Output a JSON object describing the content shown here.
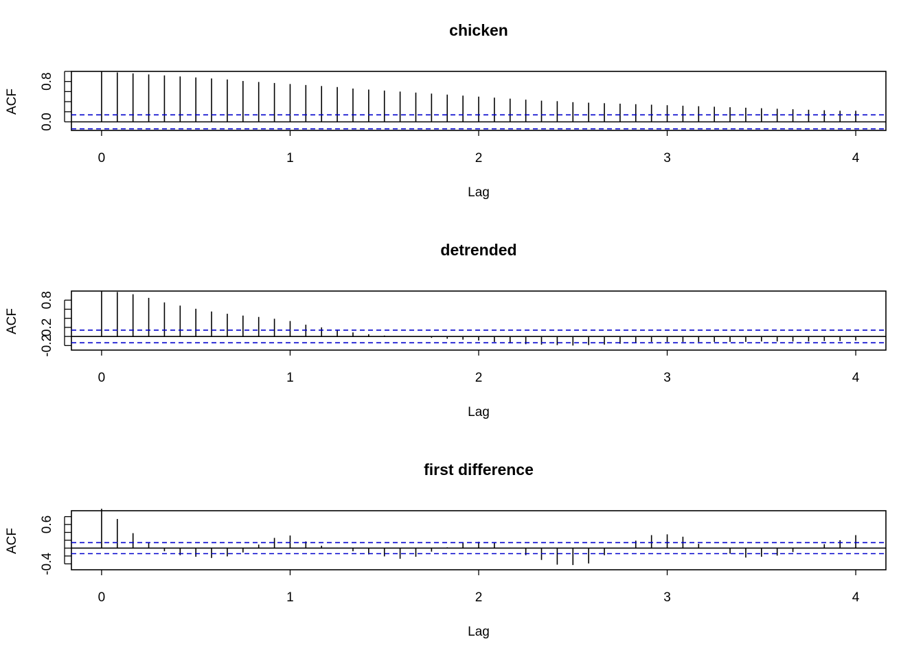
{
  "chart_data": [
    {
      "type": "bar",
      "title": "chicken",
      "xlabel": "Lag",
      "ylabel": "ACF",
      "xlim": [
        -0.16,
        4.16
      ],
      "ylim": [
        -0.17,
        1.0
      ],
      "x_ticks": [
        "0",
        "1",
        "2",
        "3",
        "4"
      ],
      "y_ticks": [
        "0.0",
        "0.8"
      ],
      "y_tick_values": [
        0.0,
        0.8
      ],
      "y_minor_ticks": [
        0.0,
        0.2,
        0.4,
        0.6,
        0.8,
        1.0
      ],
      "ci": 0.139,
      "lags": [
        0,
        0.0833,
        0.1667,
        0.25,
        0.3333,
        0.4167,
        0.5,
        0.5833,
        0.6667,
        0.75,
        0.8333,
        0.9167,
        1,
        1.0833,
        1.1667,
        1.25,
        1.3333,
        1.4167,
        1.5,
        1.5833,
        1.6667,
        1.75,
        1.8333,
        1.9167,
        2,
        2.0833,
        2.1667,
        2.25,
        2.3333,
        2.4167,
        2.5,
        2.5833,
        2.6667,
        2.75,
        2.8333,
        2.9167,
        3,
        3.0833,
        3.1667,
        3.25,
        3.3333,
        3.4167,
        3.5,
        3.5833,
        3.6667,
        3.75,
        3.8333,
        3.9167,
        4
      ],
      "values": [
        1.0,
        0.98,
        0.96,
        0.94,
        0.92,
        0.9,
        0.88,
        0.86,
        0.84,
        0.81,
        0.79,
        0.77,
        0.75,
        0.73,
        0.71,
        0.69,
        0.66,
        0.64,
        0.62,
        0.6,
        0.58,
        0.56,
        0.54,
        0.52,
        0.5,
        0.48,
        0.46,
        0.44,
        0.42,
        0.41,
        0.39,
        0.38,
        0.37,
        0.36,
        0.35,
        0.34,
        0.33,
        0.32,
        0.31,
        0.3,
        0.29,
        0.28,
        0.27,
        0.26,
        0.25,
        0.24,
        0.23,
        0.22,
        0.22
      ]
    },
    {
      "type": "bar",
      "title": "detrended",
      "xlabel": "Lag",
      "ylabel": "ACF",
      "xlim": [
        -0.16,
        4.16
      ],
      "ylim": [
        -0.3,
        1.0
      ],
      "x_ticks": [
        "0",
        "1",
        "2",
        "3",
        "4"
      ],
      "y_ticks": [
        "-0.2",
        "0.2",
        "0.8"
      ],
      "y_tick_values": [
        -0.2,
        0.2,
        0.8
      ],
      "y_minor_ticks": [
        -0.2,
        0.0,
        0.2,
        0.4,
        0.6,
        0.8
      ],
      "ci": 0.139,
      "lags": [
        0,
        0.0833,
        0.1667,
        0.25,
        0.3333,
        0.4167,
        0.5,
        0.5833,
        0.6667,
        0.75,
        0.8333,
        0.9167,
        1,
        1.0833,
        1.1667,
        1.25,
        1.3333,
        1.4167,
        1.5,
        1.5833,
        1.6667,
        1.75,
        1.8333,
        1.9167,
        2,
        2.0833,
        2.1667,
        2.25,
        2.3333,
        2.4167,
        2.5,
        2.5833,
        2.6667,
        2.75,
        2.8333,
        2.9167,
        3,
        3.0833,
        3.1667,
        3.25,
        3.3333,
        3.4167,
        3.5,
        3.5833,
        3.6667,
        3.75,
        3.8333,
        3.9167,
        4
      ],
      "values": [
        1.0,
        0.98,
        0.93,
        0.85,
        0.75,
        0.68,
        0.61,
        0.55,
        0.5,
        0.46,
        0.43,
        0.39,
        0.34,
        0.26,
        0.2,
        0.15,
        0.09,
        0.05,
        0.02,
        0.01,
        -0.01,
        -0.03,
        -0.05,
        -0.07,
        -0.09,
        -0.12,
        -0.15,
        -0.17,
        -0.18,
        -0.19,
        -0.2,
        -0.19,
        -0.18,
        -0.16,
        -0.14,
        -0.12,
        -0.12,
        -0.12,
        -0.12,
        -0.12,
        -0.12,
        -0.12,
        -0.11,
        -0.11,
        -0.11,
        -0.11,
        -0.1,
        -0.1,
        -0.09
      ]
    },
    {
      "type": "bar",
      "title": "first difference",
      "xlabel": "Lag",
      "ylabel": "ACF",
      "xlim": [
        -0.16,
        4.16
      ],
      "ylim": [
        -0.55,
        0.95
      ],
      "x_ticks": [
        "0",
        "1",
        "2",
        "3",
        "4"
      ],
      "y_ticks": [
        "-0.4",
        "0.6"
      ],
      "y_tick_values": [
        -0.4,
        0.6
      ],
      "y_minor_ticks": [
        -0.4,
        -0.2,
        0.0,
        0.2,
        0.4,
        0.6,
        0.8
      ],
      "ci": 0.14,
      "lags": [
        0,
        0.0833,
        0.1667,
        0.25,
        0.3333,
        0.4167,
        0.5,
        0.5833,
        0.6667,
        0.75,
        0.8333,
        0.9167,
        1,
        1.0833,
        1.1667,
        1.25,
        1.3333,
        1.4167,
        1.5,
        1.5833,
        1.6667,
        1.75,
        1.8333,
        1.9167,
        2,
        2.0833,
        2.1667,
        2.25,
        2.3333,
        2.4167,
        2.5,
        2.5833,
        2.6667,
        2.75,
        2.8333,
        2.9167,
        3,
        3.0833,
        3.1667,
        3.25,
        3.3333,
        3.4167,
        3.5,
        3.5833,
        3.6667,
        3.75,
        3.8333,
        3.9167,
        4
      ],
      "values": [
        1.0,
        0.74,
        0.38,
        0.13,
        -0.08,
        -0.18,
        -0.22,
        -0.25,
        -0.21,
        -0.11,
        0.09,
        0.26,
        0.32,
        0.17,
        0.06,
        0.01,
        -0.08,
        -0.16,
        -0.21,
        -0.27,
        -0.22,
        -0.09,
        0.02,
        0.13,
        0.16,
        0.13,
        0.01,
        -0.18,
        -0.3,
        -0.42,
        -0.43,
        -0.39,
        -0.18,
        0.0,
        0.19,
        0.33,
        0.35,
        0.29,
        0.11,
        0.0,
        -0.14,
        -0.24,
        -0.22,
        -0.19,
        -0.1,
        0.0,
        0.1,
        0.2,
        0.33
      ]
    }
  ]
}
